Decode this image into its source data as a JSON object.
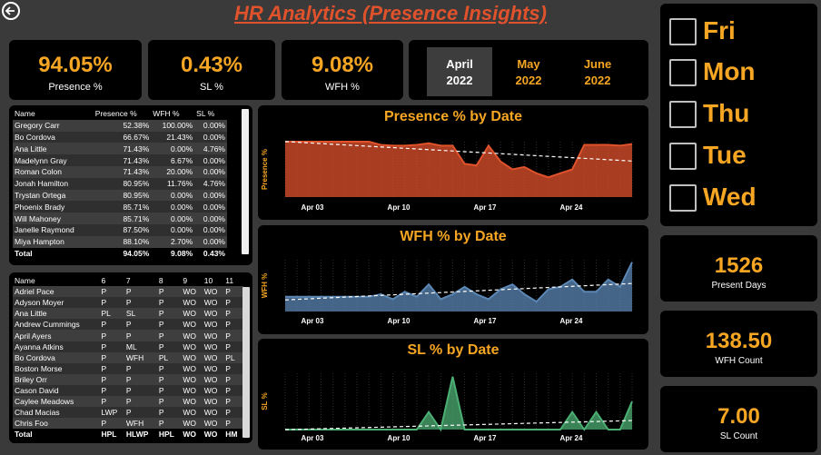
{
  "header": {
    "title": "HR Analytics (Presence Insights)"
  },
  "kpis": [
    {
      "value": "94.05%",
      "label": "Presence %"
    },
    {
      "value": "0.43%",
      "label": "SL %"
    },
    {
      "value": "9.08%",
      "label": "WFH %"
    }
  ],
  "months": [
    {
      "name": "April",
      "year": "2022",
      "selected": true
    },
    {
      "name": "May",
      "year": "2022",
      "selected": false
    },
    {
      "name": "June",
      "year": "2022",
      "selected": false
    }
  ],
  "days": [
    "Fri",
    "Mon",
    "Thu",
    "Tue",
    "Wed"
  ],
  "stats": [
    {
      "value": "1526",
      "label": "Present Days"
    },
    {
      "value": "138.50",
      "label": "WFH Count"
    },
    {
      "value": "7.00",
      "label": "SL Count"
    }
  ],
  "employee_table": {
    "headers": [
      "Name",
      "Presence %",
      "WFH %",
      "SL %"
    ],
    "rows": [
      [
        "Gregory Carr",
        "52.38%",
        "100.00%",
        "0.00%"
      ],
      [
        "Bo Cordova",
        "66.67%",
        "21.43%",
        "0.00%"
      ],
      [
        "Ana Little",
        "71.43%",
        "0.00%",
        "4.76%"
      ],
      [
        "Madelynn Gray",
        "71.43%",
        "6.67%",
        "0.00%"
      ],
      [
        "Roman Colon",
        "71.43%",
        "20.00%",
        "0.00%"
      ],
      [
        "Jonah Hamilton",
        "80.95%",
        "11.76%",
        "4.76%"
      ],
      [
        "Trystan Ortega",
        "80.95%",
        "0.00%",
        "0.00%"
      ],
      [
        "Phoenix Brady",
        "85.71%",
        "0.00%",
        "0.00%"
      ],
      [
        "Will Mahoney",
        "85.71%",
        "0.00%",
        "0.00%"
      ],
      [
        "Janelle Raymond",
        "87.50%",
        "0.00%",
        "0.00%"
      ],
      [
        "Miya Hampton",
        "88.10%",
        "2.70%",
        "0.00%"
      ]
    ],
    "total": [
      "Total",
      "94.05%",
      "9.08%",
      "0.43%"
    ]
  },
  "attendance_table": {
    "headers": [
      "Name",
      "6",
      "7",
      "8",
      "9",
      "10",
      "11"
    ],
    "rows": [
      [
        "Adriel Pace",
        "P",
        "P",
        "P",
        "WO",
        "WO",
        "P"
      ],
      [
        "Adyson Moyer",
        "P",
        "P",
        "P",
        "WO",
        "WO",
        "P"
      ],
      [
        "Ana Little",
        "PL",
        "SL",
        "P",
        "WO",
        "WO",
        "P"
      ],
      [
        "Andrew Cummings",
        "P",
        "P",
        "P",
        "WO",
        "WO",
        "P"
      ],
      [
        "April Ayers",
        "P",
        "P",
        "P",
        "WO",
        "WO",
        "P"
      ],
      [
        "Ayanna Atkins",
        "P",
        "ML",
        "P",
        "WO",
        "WO",
        "P"
      ],
      [
        "Bo Cordova",
        "P",
        "WFH",
        "PL",
        "WO",
        "WO",
        "PL"
      ],
      [
        "Boston Morse",
        "P",
        "P",
        "P",
        "WO",
        "WO",
        "P"
      ],
      [
        "Briley Orr",
        "P",
        "P",
        "P",
        "WO",
        "WO",
        "P"
      ],
      [
        "Cason David",
        "P",
        "P",
        "P",
        "WO",
        "WO",
        "P"
      ],
      [
        "Caylee Meadows",
        "P",
        "P",
        "P",
        "WO",
        "WO",
        "P"
      ],
      [
        "Chad Macias",
        "LWP",
        "P",
        "P",
        "WO",
        "WO",
        "P"
      ],
      [
        "Chris Foo",
        "P",
        "WFH",
        "P",
        "WO",
        "WO",
        "P"
      ]
    ],
    "total": [
      "Total",
      "HPL",
      "HLWP",
      "HPL",
      "WO",
      "WO",
      "HM"
    ]
  },
  "chart_data": [
    {
      "type": "area",
      "title": "Presence % by Date",
      "ylabel": "Presence %",
      "xlabel": "",
      "x_ticks": [
        "Apr 03",
        "Apr 10",
        "Apr 17",
        "Apr 24"
      ],
      "x": [
        1,
        2,
        3,
        4,
        5,
        6,
        7,
        8,
        9,
        10,
        11,
        12,
        13,
        14,
        15,
        16,
        17,
        18,
        19,
        20,
        21,
        22,
        23,
        24,
        25,
        26,
        27,
        28,
        29,
        30
      ],
      "values": [
        100,
        100,
        100,
        100,
        100,
        100,
        100,
        100,
        96,
        95,
        95,
        96,
        98,
        95,
        95,
        72,
        70,
        95,
        75,
        65,
        68,
        60,
        55,
        60,
        65,
        96,
        96,
        96,
        95,
        97
      ],
      "trendline": true,
      "color": "#e0522c"
    },
    {
      "type": "area",
      "title": "WFH % by Date",
      "ylabel": "WFH %",
      "xlabel": "",
      "x_ticks": [
        "Apr 03",
        "Apr 10",
        "Apr 17",
        "Apr 24"
      ],
      "x": [
        1,
        2,
        3,
        4,
        5,
        6,
        7,
        8,
        9,
        10,
        11,
        12,
        13,
        14,
        15,
        16,
        17,
        18,
        19,
        20,
        21,
        22,
        23,
        24,
        25,
        26,
        27,
        28,
        29,
        30
      ],
      "values": [
        6,
        6,
        6,
        6,
        6,
        6,
        6,
        6,
        7,
        5,
        8,
        6,
        11,
        5,
        7,
        10,
        7,
        5,
        9,
        11,
        7,
        4,
        9,
        10,
        13,
        8,
        8,
        13,
        10,
        20
      ],
      "trendline": true,
      "color": "#5b87b5"
    },
    {
      "type": "area",
      "title": "SL % by Date",
      "ylabel": "SL %",
      "xlabel": "",
      "x_ticks": [
        "Apr 03",
        "Apr 10",
        "Apr 17",
        "Apr 24"
      ],
      "x": [
        1,
        2,
        3,
        4,
        5,
        6,
        7,
        8,
        9,
        10,
        11,
        12,
        13,
        14,
        15,
        16,
        17,
        18,
        19,
        20,
        21,
        22,
        23,
        24,
        25,
        26,
        27,
        28,
        29,
        30
      ],
      "values": [
        0,
        0,
        0,
        0,
        0,
        0,
        0,
        0,
        0,
        0,
        0,
        0,
        0.5,
        0,
        1.5,
        0,
        0,
        0,
        0,
        0,
        0,
        0,
        0,
        0,
        0.5,
        0,
        0.5,
        0,
        0,
        0.8
      ],
      "trendline": true,
      "color": "#4caf74"
    }
  ]
}
